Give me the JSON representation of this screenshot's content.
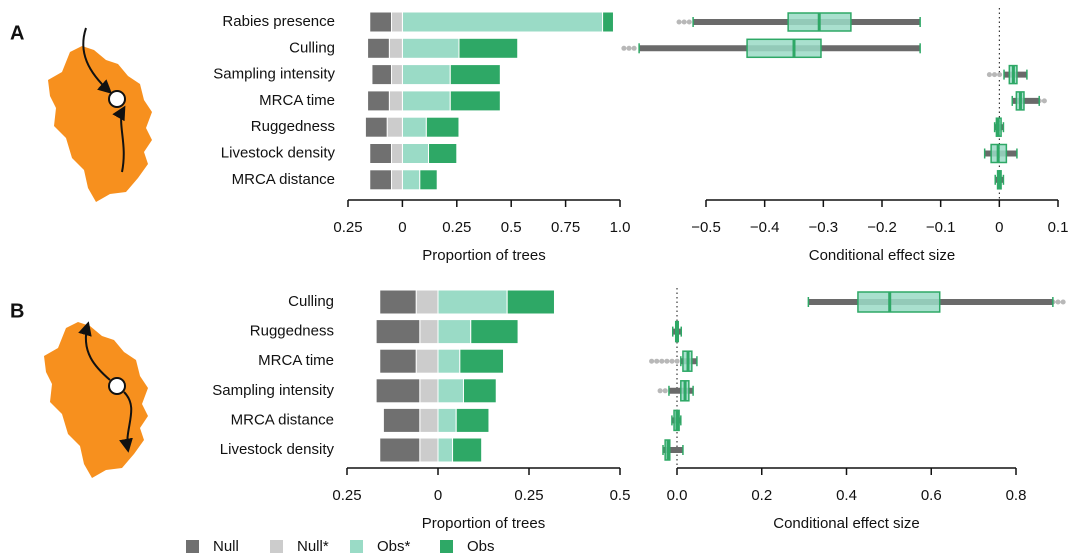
{
  "chart_data": [
    {
      "type": "bar",
      "orientation": "horizontal",
      "stacked": true,
      "panel": "A",
      "xlabel": "Proportion of trees",
      "categories": [
        "Rabies presence",
        "Culling",
        "Sampling intensity",
        "MRCA time",
        "Ruggedness",
        "Livestock density",
        "MRCA distance"
      ],
      "series": [
        {
          "color": "#707070",
          "values": [
            -0.1,
            -0.1,
            -0.09,
            -0.1,
            -0.1,
            -0.1,
            -0.1
          ]
        },
        {
          "color": "#cccccc",
          "values": [
            -0.05,
            -0.06,
            -0.05,
            -0.06,
            -0.07,
            -0.05,
            -0.05
          ]
        },
        {
          "color": "#9adbc6",
          "values": [
            0.92,
            0.26,
            0.22,
            0.22,
            0.11,
            0.12,
            0.08
          ]
        },
        {
          "color": "#2ea866",
          "values": [
            0.05,
            0.27,
            0.23,
            0.23,
            0.15,
            0.13,
            0.08
          ]
        }
      ],
      "xlim": [
        -0.25,
        1
      ],
      "xticks": [
        {
          "value": -0.25,
          "label": "0.25"
        },
        0,
        0.25,
        0.5,
        0.75,
        {
          "value": 1,
          "label": "1.0"
        }
      ]
    },
    {
      "type": "box",
      "orientation": "horizontal",
      "xlabel": "Conditional effect size",
      "box_color": "#9adbc6",
      "line_color": "#2ea866",
      "whisker_color": "#6a6a6a",
      "outlier_color": "#b8b8b8",
      "whisker_low": [
        -0.522,
        -0.614,
        0.008,
        0.022,
        -0.008,
        -0.025,
        -0.007
      ],
      "q1": [
        -0.36,
        -0.43,
        0.017,
        0.029,
        -0.005,
        -0.014,
        -0.003
      ],
      "median": [
        -0.307,
        -0.35,
        0.024,
        0.036,
        -0.002,
        -0.002,
        0
      ],
      "q3": [
        -0.253,
        -0.304,
        0.03,
        0.042,
        0.003,
        0.012,
        0.003
      ],
      "whisker_high": [
        -0.135,
        -0.135,
        0.047,
        0.068,
        0.007,
        0.03,
        0.007
      ],
      "outlier_low": [
        -0.546,
        -0.64,
        -0.017,
        null,
        null,
        null,
        null
      ],
      "outlier_high": [
        null,
        null,
        null,
        0.08,
        null,
        null,
        null
      ],
      "reference_line": 0,
      "xlim": [
        -0.5,
        0.1
      ],
      "xticks": [
        {
          "value": -0.5,
          "label": "−0.5"
        },
        {
          "value": -0.4,
          "label": "−0.4"
        },
        {
          "value": -0.3,
          "label": "−0.3"
        },
        {
          "value": -0.2,
          "label": "−0.2"
        },
        {
          "value": -0.1,
          "label": "−0.1"
        },
        0,
        0.1
      ]
    },
    {
      "type": "bar",
      "orientation": "horizontal",
      "stacked": true,
      "panel": "B",
      "xlabel": "Proportion of trees",
      "categories": [
        "Culling",
        "Ruggedness",
        "MRCA time",
        "Sampling intensity",
        "MRCA distance",
        "Livestock density"
      ],
      "series": [
        {
          "name": "Null",
          "color": "#707070",
          "values": [
            -0.1,
            -0.12,
            -0.1,
            -0.12,
            -0.1,
            -0.11
          ]
        },
        {
          "name": "Null*",
          "color": "#cccccc",
          "values": [
            -0.06,
            -0.05,
            -0.06,
            -0.05,
            -0.05,
            -0.05
          ]
        },
        {
          "name": "Obs*",
          "color": "#9adbc6",
          "values": [
            0.19,
            0.09,
            0.06,
            0.07,
            0.05,
            0.04
          ]
        },
        {
          "name": "Obs",
          "color": "#2ea866",
          "values": [
            0.13,
            0.13,
            0.12,
            0.09,
            0.09,
            0.08
          ]
        }
      ],
      "xlim": [
        -0.25,
        0.5
      ],
      "xticks": [
        {
          "value": -0.25,
          "label": "0.25"
        },
        0,
        0.25,
        0.5
      ]
    },
    {
      "type": "box",
      "orientation": "horizontal",
      "xlabel": "Conditional effect size",
      "box_color": "#9adbc6",
      "line_color": "#2ea866",
      "whisker_color": "#6a6a6a",
      "outlier_color": "#b8b8b8",
      "whisker_low": [
        0.31,
        -0.01,
        0.009,
        -0.019,
        -0.012,
        -0.033
      ],
      "q1": [
        0.427,
        -0.003,
        0.014,
        0.009,
        -0.007,
        -0.028
      ],
      "median": [
        0.502,
        0,
        0.026,
        0.019,
        0,
        -0.021
      ],
      "q3": [
        0.62,
        0.003,
        0.035,
        0.028,
        0.005,
        -0.017
      ],
      "whisker_high": [
        0.887,
        0.01,
        0.047,
        0.038,
        0.009,
        0.014
      ],
      "outlier_low": [
        null,
        null,
        -0.06,
        -0.04,
        null,
        null
      ],
      "outlier_high": [
        0.92,
        null,
        null,
        null,
        null,
        null
      ],
      "reference_line": 0,
      "xlim": [
        0,
        0.8
      ],
      "xticks": [
        {
          "value": 0,
          "label": "0.0"
        },
        0.2,
        0.4,
        0.6,
        0.8
      ]
    }
  ]
}
